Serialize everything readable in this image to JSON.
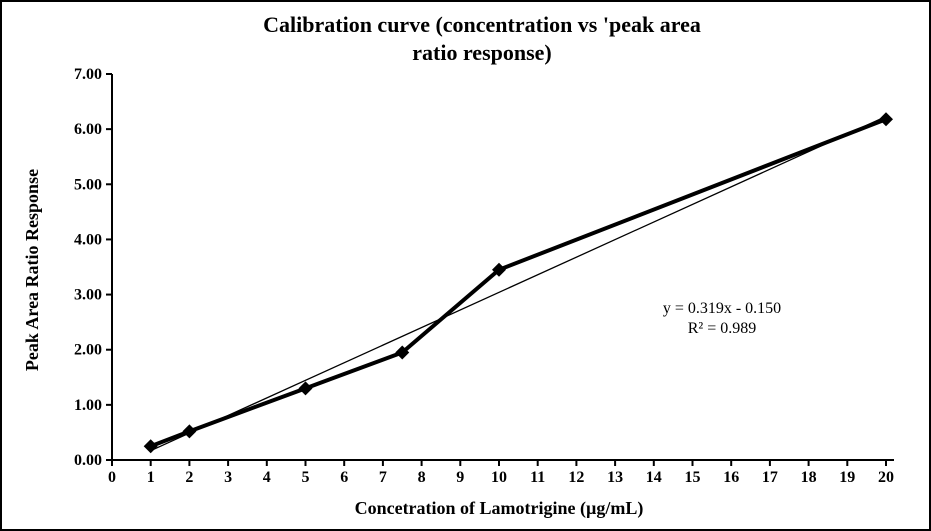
{
  "chart": {
    "foreground_color": "#000000",
    "background_color": "#ffffff"
  },
  "chart_data": {
    "type": "line",
    "title": "Calibration curve (concentration vs 'peak area ratio response)",
    "title_lines": [
      "Calibration curve (concentration vs 'peak area",
      "ratio response)"
    ],
    "xlabel": "Concetration of Lamotrigine (µg/mL)",
    "ylabel": "Peak Area Ratio Response",
    "xlim": [
      0,
      20
    ],
    "ylim": [
      0,
      7
    ],
    "x_ticks": [
      "0",
      "1",
      "2",
      "3",
      "4",
      "5",
      "6",
      "7",
      "8",
      "9",
      "10",
      "11",
      "12",
      "13",
      "14",
      "15",
      "16",
      "17",
      "18",
      "19",
      "20"
    ],
    "y_ticks": [
      "0.00",
      "1.00",
      "2.00",
      "3.00",
      "4.00",
      "5.00",
      "6.00",
      "7.00"
    ],
    "grid": false,
    "legend": "none",
    "series": [
      {
        "name": "peak-area-ratio-response",
        "marker": "diamond",
        "color": "#000000",
        "x": [
          1,
          2,
          5,
          7.5,
          10,
          20
        ],
        "y": [
          0.25,
          0.52,
          1.3,
          1.95,
          3.45,
          6.18
        ]
      }
    ],
    "trendline": {
      "slope": 0.319,
      "intercept": -0.15,
      "x_range": [
        1,
        20
      ],
      "equation_label": "y = 0.319x - 0.150",
      "r2_label": "R² = 0.989"
    }
  }
}
